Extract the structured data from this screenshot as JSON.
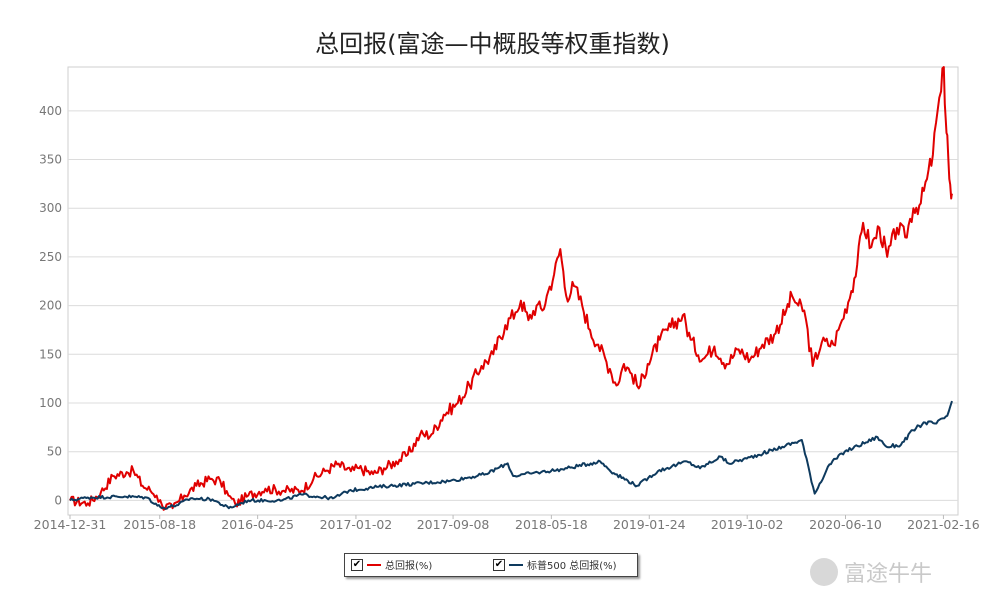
{
  "chart_data": {
    "type": "line",
    "title": "总回报(富途—中概股等权重指数)",
    "ylim": [
      -15,
      445
    ],
    "yticks": [
      0,
      50,
      100,
      150,
      200,
      250,
      300,
      350,
      400
    ],
    "xticks": [
      "2014-12-31",
      "2015-08-18",
      "2016-04-25",
      "2017-01-02",
      "2017-09-08",
      "2018-05-18",
      "2019-01-24",
      "2019-10-02",
      "2020-06-10",
      "2021-02-16"
    ],
    "x_start": "2014-12-31",
    "x_end": "2021-03-10",
    "grid": true,
    "legend_position": "bottom-center",
    "series": [
      {
        "name": "总回报(%)",
        "color": "#e00000",
        "points": [
          [
            "2014-12-31",
            0
          ],
          [
            "2015-02-15",
            -3
          ],
          [
            "2015-03-20",
            8
          ],
          [
            "2015-04-20",
            25
          ],
          [
            "2015-05-25",
            29
          ],
          [
            "2015-06-12",
            30
          ],
          [
            "2015-07-05",
            15
          ],
          [
            "2015-07-25",
            10
          ],
          [
            "2015-08-10",
            5
          ],
          [
            "2015-08-24",
            -5
          ],
          [
            "2015-09-20",
            -8
          ],
          [
            "2015-10-20",
            5
          ],
          [
            "2015-11-20",
            15
          ],
          [
            "2015-12-25",
            22
          ],
          [
            "2016-01-20",
            20
          ],
          [
            "2016-02-10",
            5
          ],
          [
            "2016-02-28",
            -4
          ],
          [
            "2016-04-01",
            5
          ],
          [
            "2016-05-15",
            12
          ],
          [
            "2016-07-01",
            10
          ],
          [
            "2016-08-15",
            10
          ],
          [
            "2016-09-15",
            22
          ],
          [
            "2016-10-15",
            30
          ],
          [
            "2016-11-15",
            37
          ],
          [
            "2016-12-20",
            30
          ],
          [
            "2017-01-10",
            33
          ],
          [
            "2017-02-15",
            27
          ],
          [
            "2017-03-15",
            33
          ],
          [
            "2017-04-15",
            40
          ],
          [
            "2017-05-15",
            47
          ],
          [
            "2017-06-15",
            67
          ],
          [
            "2017-07-15",
            68
          ],
          [
            "2017-08-15",
            88
          ],
          [
            "2017-09-20",
            100
          ],
          [
            "2017-10-20",
            118
          ],
          [
            "2017-11-20",
            138
          ],
          [
            "2017-12-20",
            150
          ],
          [
            "2018-01-20",
            180
          ],
          [
            "2018-02-15",
            193
          ],
          [
            "2018-03-01",
            205
          ],
          [
            "2018-03-20",
            185
          ],
          [
            "2018-04-10",
            200
          ],
          [
            "2018-04-25",
            195
          ],
          [
            "2018-05-10",
            215
          ],
          [
            "2018-05-25",
            232
          ],
          [
            "2018-06-10",
            258
          ],
          [
            "2018-06-25",
            210
          ],
          [
            "2018-07-15",
            220
          ],
          [
            "2018-08-05",
            200
          ],
          [
            "2018-08-25",
            175
          ],
          [
            "2018-09-15",
            160
          ],
          [
            "2018-10-15",
            135
          ],
          [
            "2018-11-01",
            118
          ],
          [
            "2018-11-20",
            140
          ],
          [
            "2018-12-10",
            130
          ],
          [
            "2018-12-28",
            115
          ],
          [
            "2019-01-20",
            140
          ],
          [
            "2019-02-20",
            165
          ],
          [
            "2019-03-20",
            178
          ],
          [
            "2019-04-20",
            190
          ],
          [
            "2019-05-10",
            165
          ],
          [
            "2019-06-10",
            145
          ],
          [
            "2019-07-10",
            158
          ],
          [
            "2019-08-10",
            140
          ],
          [
            "2019-09-10",
            155
          ],
          [
            "2019-10-10",
            145
          ],
          [
            "2019-11-10",
            160
          ],
          [
            "2019-12-10",
            170
          ],
          [
            "2020-01-10",
            195
          ],
          [
            "2020-01-25",
            210
          ],
          [
            "2020-02-10",
            200
          ],
          [
            "2020-02-25",
            195
          ],
          [
            "2020-03-18",
            138
          ],
          [
            "2020-04-10",
            162
          ],
          [
            "2020-05-10",
            160
          ],
          [
            "2020-06-01",
            185
          ],
          [
            "2020-06-25",
            215
          ],
          [
            "2020-07-10",
            242
          ],
          [
            "2020-07-25",
            285
          ],
          [
            "2020-08-15",
            260
          ],
          [
            "2020-09-05",
            280
          ],
          [
            "2020-09-25",
            250
          ],
          [
            "2020-10-20",
            280
          ],
          [
            "2020-11-10",
            270
          ],
          [
            "2020-12-01",
            300
          ],
          [
            "2020-12-20",
            305
          ],
          [
            "2021-01-05",
            330
          ],
          [
            "2021-01-20",
            355
          ],
          [
            "2021-02-01",
            400
          ],
          [
            "2021-02-10",
            420
          ],
          [
            "2021-02-17",
            445
          ],
          [
            "2021-02-22",
            390
          ],
          [
            "2021-02-26",
            375
          ],
          [
            "2021-03-03",
            330
          ],
          [
            "2021-03-08",
            310
          ],
          [
            "2021-03-10",
            315
          ]
        ]
      },
      {
        "name": "标普500 总回报(%)",
        "color": "#0e3a5e",
        "points": [
          [
            "2014-12-31",
            0
          ],
          [
            "2015-02-15",
            3
          ],
          [
            "2015-05-20",
            4
          ],
          [
            "2015-07-15",
            3
          ],
          [
            "2015-08-24",
            -8
          ],
          [
            "2015-09-30",
            -5
          ],
          [
            "2015-11-05",
            2
          ],
          [
            "2015-12-31",
            1
          ],
          [
            "2016-02-11",
            -8
          ],
          [
            "2016-04-01",
            0
          ],
          [
            "2016-06-27",
            0
          ],
          [
            "2016-08-15",
            6
          ],
          [
            "2016-11-04",
            2
          ],
          [
            "2016-12-15",
            10
          ],
          [
            "2017-03-01",
            14
          ],
          [
            "2017-06-01",
            17
          ],
          [
            "2017-09-01",
            20
          ],
          [
            "2017-12-01",
            27
          ],
          [
            "2018-01-26",
            38
          ],
          [
            "2018-02-09",
            25
          ],
          [
            "2018-04-01",
            28
          ],
          [
            "2018-06-15",
            32
          ],
          [
            "2018-09-20",
            40
          ],
          [
            "2018-10-25",
            28
          ],
          [
            "2018-12-24",
            15
          ],
          [
            "2019-02-15",
            30
          ],
          [
            "2019-04-30",
            40
          ],
          [
            "2019-06-03",
            33
          ],
          [
            "2019-07-26",
            45
          ],
          [
            "2019-08-15",
            38
          ],
          [
            "2019-10-01",
            43
          ],
          [
            "2019-12-31",
            55
          ],
          [
            "2020-02-19",
            62
          ],
          [
            "2020-03-23",
            7
          ],
          [
            "2020-04-30",
            37
          ],
          [
            "2020-06-08",
            50
          ],
          [
            "2020-08-31",
            65
          ],
          [
            "2020-09-23",
            55
          ],
          [
            "2020-10-30",
            57
          ],
          [
            "2020-11-30",
            72
          ],
          [
            "2020-12-31",
            80
          ],
          [
            "2021-01-29",
            79
          ],
          [
            "2021-02-26",
            87
          ],
          [
            "2021-03-10",
            102
          ]
        ]
      }
    ]
  },
  "legend": {
    "items": [
      {
        "label": "总回报(%)",
        "color": "#e00000"
      },
      {
        "label": "标普500 总回报(%)",
        "color": "#0e3a5e"
      }
    ],
    "check_mark": "✔"
  },
  "watermark": {
    "text": "富途牛牛"
  }
}
